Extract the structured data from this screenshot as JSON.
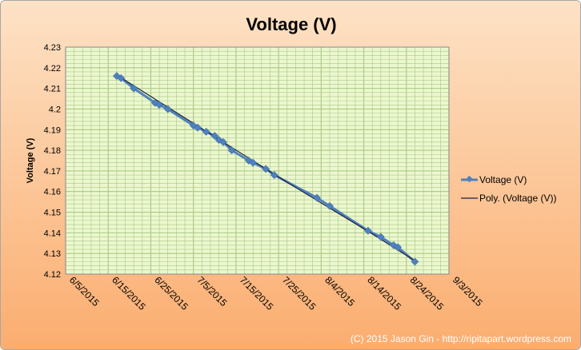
{
  "chart_data": {
    "type": "line",
    "title": "Voltage (V)",
    "ylabel": "Voltage (V)",
    "xlabel": "",
    "x_axis_kind": "date",
    "xlim": [
      "6/5/2015",
      "9/3/2015"
    ],
    "x_ticks": [
      "6/5/2015",
      "6/15/2015",
      "6/25/2015",
      "7/5/2015",
      "7/15/2015",
      "7/25/2015",
      "8/4/2015",
      "8/14/2015",
      "8/24/2015",
      "9/3/2015"
    ],
    "ylim": [
      4.12,
      4.23
    ],
    "y_ticks": [
      "4.12",
      "4.13",
      "4.14",
      "4.15",
      "4.16",
      "4.17",
      "4.18",
      "4.19",
      "4.2",
      "4.21",
      "4.22",
      "4.23"
    ],
    "grid": true,
    "legend_position": "right",
    "series": [
      {
        "name": "Voltage (V)",
        "style": "line-with-diamond-markers",
        "color": "#4f81bd",
        "points": [
          {
            "x": "6/17/2015",
            "y": 4.216
          },
          {
            "x": "6/18/2015",
            "y": 4.215
          },
          {
            "x": "6/21/2015",
            "y": 4.21
          },
          {
            "x": "6/26/2015",
            "y": 4.203
          },
          {
            "x": "6/27/2015",
            "y": 4.202
          },
          {
            "x": "6/29/2015",
            "y": 4.2
          },
          {
            "x": "7/5/2015",
            "y": 4.192
          },
          {
            "x": "7/6/2015",
            "y": 4.191
          },
          {
            "x": "7/8/2015",
            "y": 4.189
          },
          {
            "x": "7/10/2015",
            "y": 4.187
          },
          {
            "x": "7/11/2015",
            "y": 4.185
          },
          {
            "x": "7/12/2015",
            "y": 4.184
          },
          {
            "x": "7/14/2015",
            "y": 4.18
          },
          {
            "x": "7/18/2015",
            "y": 4.175
          },
          {
            "x": "7/19/2015",
            "y": 4.174
          },
          {
            "x": "7/22/2015",
            "y": 4.171
          },
          {
            "x": "7/24/2015",
            "y": 4.168
          },
          {
            "x": "8/3/2015",
            "y": 4.157
          },
          {
            "x": "8/6/2015",
            "y": 4.153
          },
          {
            "x": "8/15/2015",
            "y": 4.141
          },
          {
            "x": "8/18/2015",
            "y": 4.138
          },
          {
            "x": "8/21/2015",
            "y": 4.134
          },
          {
            "x": "8/22/2015",
            "y": 4.133
          },
          {
            "x": "8/26/2015",
            "y": 4.126
          }
        ]
      },
      {
        "name": "Poly. (Voltage (V))",
        "style": "trendline",
        "color": "#1f1f3a",
        "points": [
          {
            "x": "6/17/2015",
            "y": 4.2165
          },
          {
            "x": "7/7/2015",
            "y": 4.1905
          },
          {
            "x": "7/27/2015",
            "y": 4.1645
          },
          {
            "x": "8/16/2015",
            "y": 4.1395
          },
          {
            "x": "8/26/2015",
            "y": 4.1265
          }
        ]
      }
    ]
  },
  "footer": {
    "copyright": "(C) 2015 Jason Gin - http://ripitapart.wordpress.com"
  },
  "colors": {
    "plot_background": "#ecf7cf",
    "grid_line": "#a9c984",
    "chart_background_top": "#fde2c6",
    "chart_background_bottom": "#fbad6f"
  }
}
